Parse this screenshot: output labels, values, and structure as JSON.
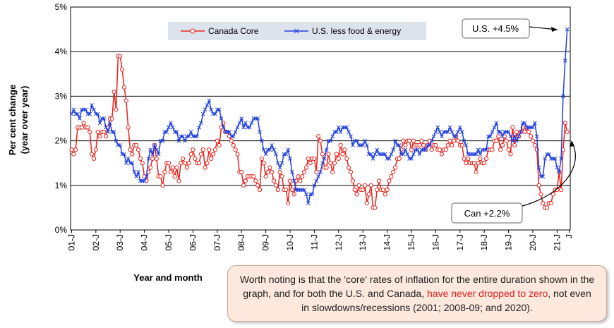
{
  "chart_data": {
    "type": "line",
    "y_label": "Per cent change",
    "y_label2": "(year over year)",
    "x_label": "Year and month",
    "annotations": [
      "U.S. +4.5%",
      "Can +2.2%"
    ],
    "categories": [
      "01-J",
      null,
      null,
      null,
      null,
      null,
      null,
      null,
      null,
      null,
      null,
      null,
      "02-J",
      null,
      null,
      null,
      null,
      null,
      null,
      null,
      null,
      null,
      null,
      null,
      "03-J",
      null,
      null,
      null,
      null,
      null,
      null,
      null,
      null,
      null,
      null,
      null,
      "04-J",
      null,
      null,
      null,
      null,
      null,
      null,
      null,
      null,
      null,
      null,
      null,
      "05-J",
      null,
      null,
      null,
      null,
      null,
      null,
      null,
      null,
      null,
      null,
      null,
      "06-J",
      null,
      null,
      null,
      null,
      null,
      null,
      null,
      null,
      null,
      null,
      null,
      "07-J",
      null,
      null,
      null,
      null,
      null,
      null,
      null,
      null,
      null,
      null,
      null,
      "08-J",
      null,
      null,
      null,
      null,
      null,
      null,
      null,
      null,
      null,
      null,
      null,
      "09-J",
      null,
      null,
      null,
      null,
      null,
      null,
      null,
      null,
      null,
      null,
      null,
      "10-J",
      null,
      null,
      null,
      null,
      null,
      null,
      null,
      null,
      null,
      null,
      null,
      "11-J",
      null,
      null,
      null,
      null,
      null,
      null,
      null,
      null,
      null,
      null,
      null,
      "12-J",
      null,
      null,
      null,
      null,
      null,
      null,
      null,
      null,
      null,
      null,
      null,
      "13-J",
      null,
      null,
      null,
      null,
      null,
      null,
      null,
      null,
      null,
      null,
      null,
      "14-J",
      null,
      null,
      null,
      null,
      null,
      null,
      null,
      null,
      null,
      null,
      null,
      "15-J",
      null,
      null,
      null,
      null,
      null,
      null,
      null,
      null,
      null,
      null,
      null,
      "16-J",
      null,
      null,
      null,
      null,
      null,
      null,
      null,
      null,
      null,
      null,
      null,
      "17-J",
      null,
      null,
      null,
      null,
      null,
      null,
      null,
      null,
      null,
      null,
      null,
      "18-J",
      null,
      null,
      null,
      null,
      null,
      null,
      null,
      null,
      null,
      null,
      null,
      "19-J",
      null,
      null,
      null,
      null,
      null,
      null,
      null,
      null,
      null,
      null,
      null,
      "20-J",
      null,
      null,
      null,
      null,
      null,
      null,
      null,
      null,
      null,
      null,
      null,
      "21-J",
      null,
      null,
      null,
      null,
      null,
      "J"
    ],
    "series": [
      {
        "name": "Canada Core",
        "color": "#e8231c",
        "marker": "circle",
        "values": [
          1.8,
          1.7,
          1.8,
          2.3,
          2.3,
          2.3,
          2.4,
          2.3,
          2.3,
          2.2,
          1.7,
          1.6,
          1.8,
          2.2,
          2.1,
          2.2,
          2.2,
          2.1,
          2.3,
          2.5,
          2.5,
          3.1,
          2.7,
          3.9,
          3.9,
          3.6,
          3.2,
          2.9,
          2.3,
          1.8,
          1.7,
          1.9,
          1.9,
          1.8,
          1.6,
          1.5,
          1.2,
          1.1,
          1.3,
          1.4,
          1.6,
          1.9,
          1.6,
          1.2,
          1.2,
          1.0,
          1.3,
          1.5,
          1.5,
          1.3,
          1.4,
          1.2,
          1.4,
          1.1,
          1.5,
          1.6,
          1.5,
          1.4,
          1.5,
          1.7,
          1.8,
          1.6,
          1.5,
          1.5,
          1.7,
          1.8,
          1.4,
          1.5,
          1.8,
          1.6,
          1.7,
          1.8,
          2.0,
          1.9,
          2.3,
          2.4,
          2.2,
          2.2,
          2.1,
          2.0,
          1.9,
          1.8,
          1.7,
          1.3,
          1.3,
          1.0,
          1.1,
          1.2,
          1.2,
          1.2,
          1.2,
          1.1,
          1.0,
          0.9,
          1.6,
          1.5,
          1.2,
          1.3,
          1.4,
          1.3,
          1.1,
          1.0,
          0.9,
          1.3,
          1.2,
          0.9,
          0.9,
          0.6,
          1.1,
          0.9,
          0.8,
          1.1,
          1.2,
          1.1,
          1.2,
          1.3,
          1.4,
          1.6,
          1.5,
          1.6,
          1.6,
          1.3,
          2.1,
          2.0,
          1.7,
          1.4,
          1.4,
          1.7,
          1.5,
          1.3,
          1.5,
          1.7,
          1.6,
          1.9,
          1.7,
          1.8,
          1.6,
          1.4,
          1.3,
          1.1,
          0.9,
          0.8,
          1.0,
          0.9,
          0.9,
          1.0,
          0.6,
          0.8,
          1.0,
          0.5,
          0.5,
          0.9,
          1.1,
          0.9,
          0.9,
          0.8,
          0.9,
          1.1,
          1.2,
          1.3,
          1.4,
          1.6,
          1.6,
          1.8,
          2.0,
          1.9,
          2.0,
          2.0,
          1.8,
          2.0,
          1.9,
          1.9,
          1.9,
          2.0,
          1.9,
          1.8,
          1.9,
          2.0,
          1.8,
          1.9,
          1.9,
          1.8,
          1.8,
          1.7,
          1.8,
          1.8,
          1.9,
          2.0,
          1.9,
          2.0,
          2.1,
          2.0,
          1.9,
          1.9,
          1.6,
          1.5,
          1.6,
          1.5,
          1.5,
          1.5,
          1.3,
          1.5,
          1.6,
          1.5,
          1.5,
          1.6,
          1.8,
          1.8,
          1.8,
          2.0,
          2.0,
          2.1,
          1.8,
          1.9,
          2.1,
          2.0,
          1.8,
          1.7,
          2.3,
          1.9,
          2.2,
          2.1,
          2.2,
          2.3,
          2.2,
          2.3,
          2.2,
          2.1,
          2.0,
          1.9,
          1.8,
          1.0,
          0.8,
          0.6,
          0.5,
          0.5,
          0.6,
          0.6,
          0.8,
          0.9,
          0.9,
          1.3,
          0.9,
          1.8,
          2.4,
          2.2,
          null
        ]
      },
      {
        "name": "U.S. less food & energy",
        "color": "#1f3fe0",
        "marker": "x",
        "values": [
          2.6,
          2.7,
          2.6,
          2.6,
          2.5,
          2.7,
          2.7,
          2.7,
          2.6,
          2.6,
          2.8,
          2.7,
          2.6,
          2.6,
          2.4,
          2.5,
          2.5,
          2.3,
          2.2,
          2.4,
          2.2,
          2.2,
          2.0,
          1.9,
          1.9,
          1.7,
          1.7,
          1.5,
          1.6,
          1.5,
          1.5,
          1.3,
          1.2,
          1.3,
          1.1,
          1.1,
          1.1,
          1.2,
          1.6,
          1.8,
          1.7,
          1.9,
          1.8,
          1.7,
          2.0,
          2.0,
          2.2,
          2.2,
          2.3,
          2.4,
          2.3,
          2.2,
          2.2,
          2.0,
          2.1,
          2.1,
          2.0,
          2.1,
          2.1,
          2.2,
          2.1,
          2.1,
          2.1,
          2.3,
          2.4,
          2.6,
          2.7,
          2.8,
          2.9,
          2.7,
          2.6,
          2.6,
          2.7,
          2.7,
          2.5,
          2.3,
          2.2,
          2.2,
          2.2,
          2.1,
          2.1,
          2.2,
          2.3,
          2.4,
          2.5,
          2.3,
          2.4,
          2.3,
          2.3,
          2.4,
          2.5,
          2.5,
          2.5,
          2.2,
          2.0,
          1.8,
          1.7,
          1.8,
          1.8,
          1.9,
          1.8,
          1.7,
          1.5,
          1.4,
          1.5,
          1.7,
          1.7,
          1.8,
          1.6,
          1.3,
          1.1,
          0.9,
          0.9,
          0.9,
          0.9,
          0.9,
          0.8,
          0.6,
          0.8,
          0.8,
          1.0,
          1.1,
          1.2,
          1.3,
          1.5,
          1.6,
          1.8,
          2.0,
          2.0,
          2.1,
          2.2,
          2.2,
          2.3,
          2.2,
          2.3,
          2.3,
          2.3,
          2.2,
          2.1,
          1.9,
          2.0,
          2.0,
          1.9,
          1.9,
          1.9,
          2.0,
          1.9,
          1.7,
          1.7,
          1.6,
          1.7,
          1.8,
          1.7,
          1.7,
          1.7,
          1.7,
          1.6,
          1.6,
          1.7,
          1.8,
          2.0,
          1.9,
          1.9,
          1.7,
          1.7,
          1.8,
          1.7,
          1.6,
          1.6,
          1.7,
          1.8,
          1.8,
          1.7,
          1.8,
          1.8,
          1.8,
          1.9,
          1.9,
          2.0,
          2.1,
          2.2,
          2.3,
          2.2,
          2.1,
          2.2,
          2.2,
          2.2,
          2.3,
          2.2,
          2.1,
          2.1,
          2.2,
          2.3,
          2.2,
          2.0,
          1.9,
          1.7,
          1.7,
          1.7,
          1.7,
          1.7,
          1.8,
          1.7,
          1.8,
          1.8,
          1.8,
          2.1,
          2.1,
          2.2,
          2.3,
          2.4,
          2.2,
          2.2,
          2.1,
          2.2,
          2.2,
          2.2,
          2.1,
          2.0,
          2.1,
          2.0,
          2.1,
          2.2,
          2.4,
          2.4,
          2.3,
          2.3,
          2.3,
          2.3,
          2.4,
          2.1,
          1.4,
          1.2,
          1.2,
          1.6,
          1.7,
          1.7,
          1.6,
          1.6,
          1.6,
          1.4,
          1.3,
          1.6,
          3.0,
          3.8,
          4.5,
          null
        ]
      }
    ],
    "ylim": [
      0,
      5
    ],
    "yticks": [
      {
        "value": 0,
        "label": "0%"
      },
      {
        "value": 1,
        "label": "1%"
      },
      {
        "value": 2,
        "label": "2%"
      },
      {
        "value": 3,
        "label": "3%"
      },
      {
        "value": 4,
        "label": "4%"
      },
      {
        "value": 5,
        "label": "5%"
      }
    ],
    "grid": true
  },
  "note": {
    "before": "Worth noting is that the 'core' rates of inflation for the entire duration shown in the graph, and for both the U.S. and Canada, ",
    "highlight": "have never dropped to zero",
    "after": ", not even in slowdowns/recessions (2001; 2008-09; and 2020)."
  }
}
